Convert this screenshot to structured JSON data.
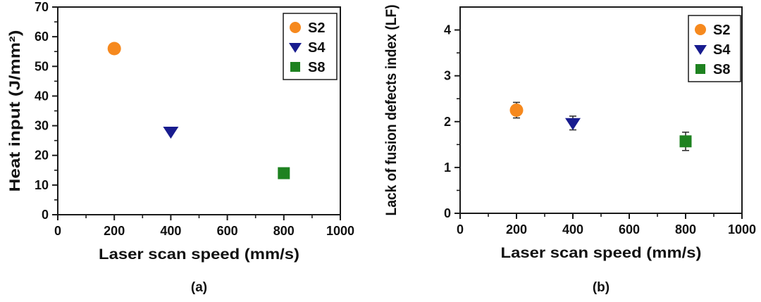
{
  "figure": {
    "background": "#ffffff",
    "axis_color": "#1a1a1a",
    "error_bar_color": "#333333"
  },
  "chart_data": [
    {
      "type": "scatter",
      "caption": "(a)",
      "xlabel": "Laser scan speed (mm/s)",
      "ylabel": "Heat input (J/mm²)",
      "xlim": [
        0,
        1000
      ],
      "ylim": [
        0,
        70
      ],
      "x_ticks": [
        0,
        200,
        400,
        600,
        800,
        1000
      ],
      "y_ticks": [
        0,
        10,
        20,
        30,
        40,
        50,
        60,
        70
      ],
      "x_minor_step": 100,
      "y_minor_step": 5,
      "grid": false,
      "legend_position": "top-right",
      "legend": [
        "S2",
        "S4",
        "S8"
      ],
      "series": [
        {
          "name": "S2",
          "marker": "circle",
          "color": "#F6891E",
          "x": [
            200
          ],
          "y": [
            56
          ]
        },
        {
          "name": "S4",
          "marker": "triangle-down",
          "color": "#181C8F",
          "x": [
            400
          ],
          "y": [
            28
          ]
        },
        {
          "name": "S8",
          "marker": "square",
          "color": "#1E8220",
          "x": [
            800
          ],
          "y": [
            14
          ]
        }
      ]
    },
    {
      "type": "scatter",
      "caption": "(b)",
      "xlabel": "Laser scan speed (mm/s)",
      "ylabel": "Lack of fusion defects index (LF)",
      "xlim": [
        0,
        1000
      ],
      "ylim": [
        0,
        4.5
      ],
      "x_ticks": [
        0,
        200,
        400,
        600,
        800,
        1000
      ],
      "y_ticks": [
        0,
        1,
        2,
        3,
        4
      ],
      "x_minor_step": 100,
      "y_minor_step": 0.5,
      "grid": false,
      "legend_position": "top-right",
      "legend": [
        "S2",
        "S4",
        "S8"
      ],
      "series": [
        {
          "name": "S2",
          "marker": "circle",
          "color": "#F6891E",
          "x": [
            200
          ],
          "y": [
            2.25
          ],
          "yerr": [
            0.17
          ]
        },
        {
          "name": "S4",
          "marker": "triangle-down",
          "color": "#181C8F",
          "x": [
            400
          ],
          "y": [
            1.97
          ],
          "yerr": [
            0.15
          ]
        },
        {
          "name": "S8",
          "marker": "square",
          "color": "#1E8220",
          "x": [
            800
          ],
          "y": [
            1.57
          ],
          "yerr": [
            0.2
          ]
        }
      ]
    }
  ]
}
